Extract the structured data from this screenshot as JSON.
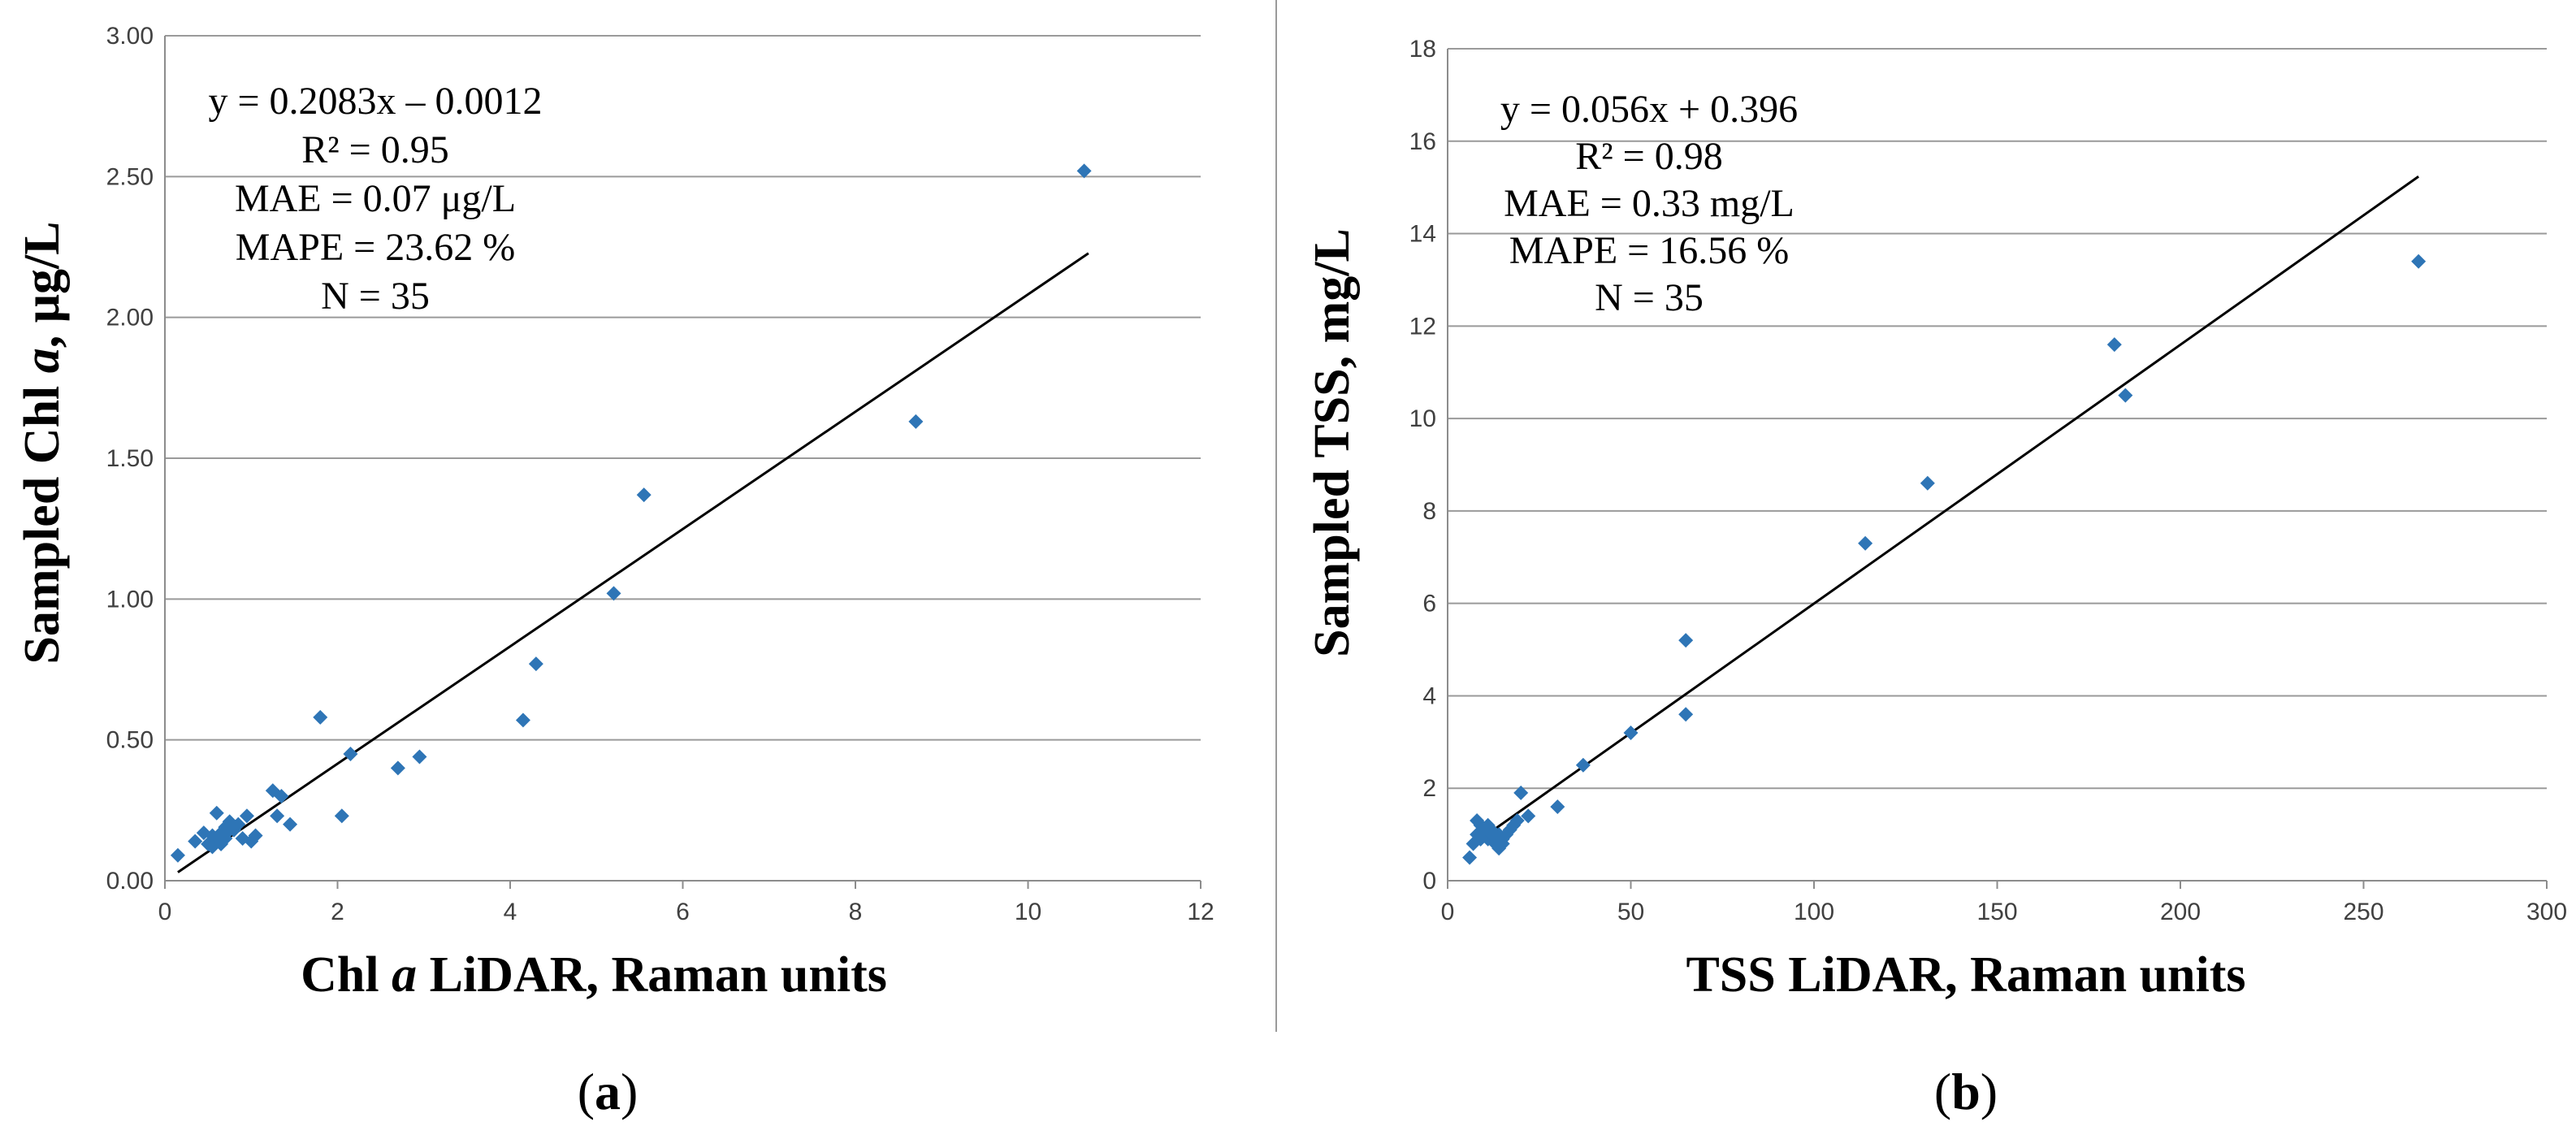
{
  "colors": {
    "marker": "#2e75b6",
    "fit_line": "#000000",
    "grid": "#9a9a9a"
  },
  "chart_data": [
    {
      "type": "scatter",
      "panel_label": "(a)",
      "panel_letter": "a",
      "xlabel": "Chl a LiDAR, Raman units",
      "xlabel_parts": {
        "pre": "Chl ",
        "italic": "a",
        "post": " LiDAR, Raman units"
      },
      "ylabel": "Sampled Chl a, μg/L",
      "ylabel_parts": {
        "pre": "Sampled Chl ",
        "italic": "a",
        "post": ", μg/L"
      },
      "xlim": [
        0,
        12
      ],
      "ylim": [
        0,
        3
      ],
      "xticks": [
        0,
        2,
        4,
        6,
        8,
        10,
        12
      ],
      "yticks": [
        0,
        0.5,
        1,
        1.5,
        2,
        2.5,
        3
      ],
      "xtick_labels": [
        "0",
        "2",
        "4",
        "6",
        "8",
        "10",
        "12"
      ],
      "ytick_labels": [
        "0.00",
        "0.50",
        "1.00",
        "1.50",
        "2.00",
        "2.50",
        "3.00"
      ],
      "grid": "horizontal",
      "annotation": [
        "y = 0.2083x – 0.0012",
        "R² = 0.95",
        "MAE = 0.07 μg/L",
        "MAPE = 23.62 %",
        "N = 35"
      ],
      "fit": {
        "slope": 0.2083,
        "intercept": -0.0012,
        "x_range": [
          0.15,
          10.7
        ]
      },
      "x": [
        0.15,
        0.35,
        0.45,
        0.5,
        0.55,
        0.6,
        0.6,
        0.65,
        0.7,
        0.7,
        0.75,
        0.8,
        0.85,
        0.9,
        0.95,
        1.0,
        1.05,
        1.25,
        1.3,
        1.35,
        1.45,
        1.8,
        2.05,
        2.15,
        2.7,
        2.95,
        4.15,
        4.3,
        5.2,
        5.55,
        8.7,
        10.65,
        0.55,
        0.65,
        0.75
      ],
      "y": [
        0.09,
        0.14,
        0.17,
        0.13,
        0.16,
        0.14,
        0.24,
        0.17,
        0.15,
        0.19,
        0.21,
        0.18,
        0.2,
        0.15,
        0.23,
        0.14,
        0.16,
        0.32,
        0.23,
        0.3,
        0.2,
        0.58,
        0.23,
        0.45,
        0.4,
        0.44,
        0.57,
        0.77,
        1.02,
        1.37,
        1.63,
        2.52,
        0.12,
        0.13,
        0.18
      ]
    },
    {
      "type": "scatter",
      "panel_label": "(b)",
      "panel_letter": "b",
      "xlabel": "TSS LiDAR, Raman units",
      "ylabel": "Sampled TSS, mg/L",
      "xlim": [
        0,
        300
      ],
      "ylim": [
        0,
        18
      ],
      "xticks": [
        0,
        50,
        100,
        150,
        200,
        250,
        300
      ],
      "yticks": [
        0,
        2,
        4,
        6,
        8,
        10,
        12,
        14,
        16,
        18
      ],
      "xtick_labels": [
        "0",
        "50",
        "100",
        "150",
        "200",
        "250",
        "300"
      ],
      "ytick_labels": [
        "0",
        "2",
        "4",
        "6",
        "8",
        "10",
        "12",
        "14",
        "16",
        "18"
      ],
      "grid": "horizontal",
      "annotation": [
        "y = 0.056x + 0.396",
        "R² = 0.98",
        "MAE = 0.33 mg/L",
        "MAPE = 16.56 %",
        "N = 35"
      ],
      "fit": {
        "slope": 0.056,
        "intercept": 0.396,
        "x_range": [
          6,
          265
        ]
      },
      "x": [
        6,
        7,
        8,
        8,
        9,
        9,
        10,
        10,
        11,
        12,
        12,
        13,
        14,
        14,
        15,
        15,
        16,
        17,
        18,
        19,
        20,
        22,
        30,
        37,
        50,
        65,
        65,
        114,
        131,
        182,
        185,
        265,
        9,
        11,
        13
      ],
      "y": [
        0.5,
        0.8,
        1.0,
        1.3,
        0.9,
        1.2,
        1.0,
        1.1,
        0.9,
        1.0,
        1.1,
        0.8,
        0.7,
        1.0,
        0.8,
        0.9,
        1.0,
        1.1,
        1.2,
        1.3,
        1.9,
        1.4,
        1.6,
        2.5,
        3.2,
        3.6,
        5.2,
        7.3,
        8.6,
        11.6,
        10.5,
        13.4,
        0.9,
        1.2,
        1.0
      ]
    }
  ]
}
